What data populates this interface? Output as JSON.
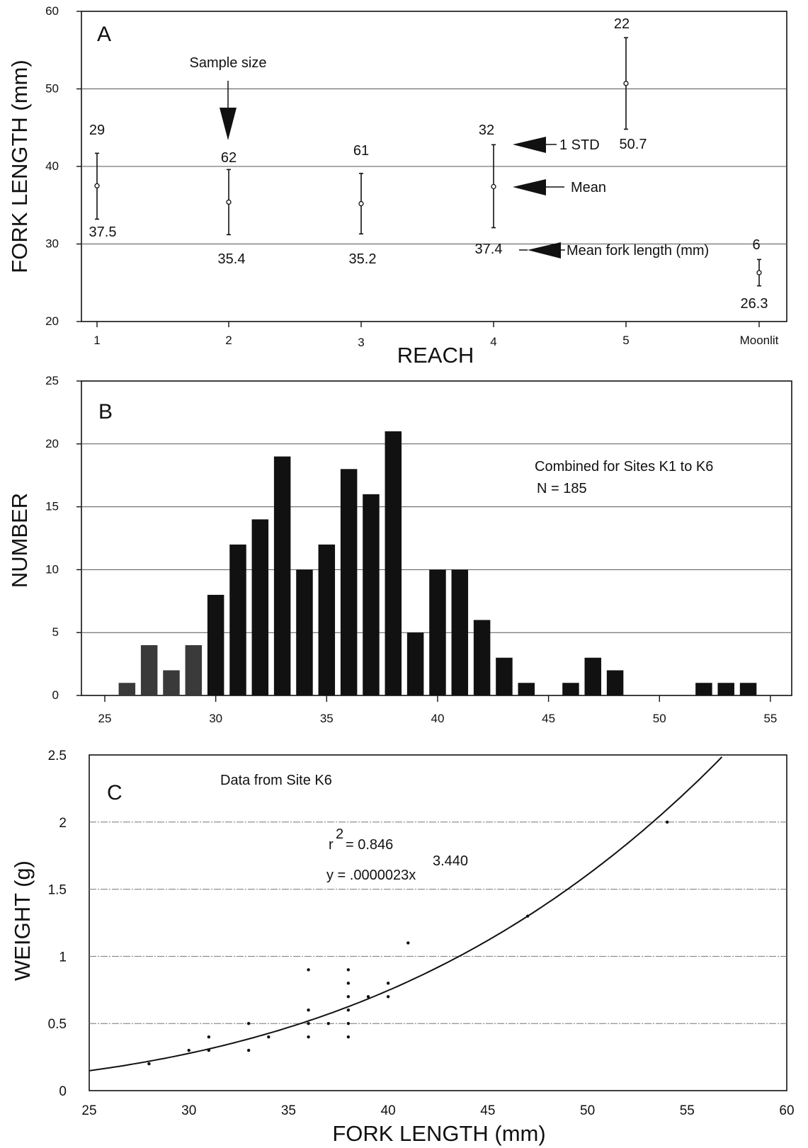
{
  "chart_data": [
    {
      "type": "errorbar",
      "panel": "A",
      "ylabel": "FORK LENGTH (mm)",
      "xlabel": "REACH",
      "ylim": [
        20,
        60
      ],
      "yticks": [
        20,
        30,
        40,
        50,
        60
      ],
      "grid": "horizontal",
      "categories": [
        "1",
        "2",
        "3",
        "4",
        "5",
        "Moonlit"
      ],
      "means": [
        37.5,
        35.4,
        35.2,
        37.4,
        50.7,
        26.3
      ],
      "std_low": [
        33.2,
        31.2,
        31.3,
        32.1,
        44.8,
        24.6
      ],
      "std_high": [
        41.7,
        39.6,
        39.1,
        42.8,
        56.6,
        28.0
      ],
      "sample_sizes": [
        "29",
        "62",
        "61",
        "32",
        "22",
        "6"
      ],
      "mean_labels": [
        "37.5",
        "35.4",
        "35.2",
        "37.4",
        "50.7",
        "26.3"
      ],
      "annotations": {
        "sample_size": "Sample size",
        "std": "1 STD",
        "mean": "Mean",
        "mean_fork_length": "Mean fork length (mm)"
      }
    },
    {
      "type": "bar",
      "panel": "B",
      "ylabel": "NUMBER",
      "ylim": [
        0,
        25
      ],
      "yticks": [
        0,
        5,
        10,
        15,
        20,
        25
      ],
      "xlim": [
        25,
        55
      ],
      "xticks": [
        25,
        30,
        35,
        40,
        45,
        50,
        55
      ],
      "grid": "horizontal",
      "x": [
        26,
        27,
        28,
        29,
        30,
        31,
        32,
        33,
        34,
        35,
        36,
        37,
        38,
        39,
        40,
        41,
        42,
        43,
        44,
        45,
        46,
        47,
        48,
        49,
        50,
        51,
        52,
        53,
        54
      ],
      "values": [
        1,
        4,
        2,
        4,
        8,
        12,
        14,
        19,
        10,
        12,
        18,
        16,
        21,
        5,
        10,
        10,
        6,
        3,
        1,
        0,
        1,
        3,
        2,
        0,
        0,
        0,
        1,
        1,
        1
      ],
      "annotation_line1": "Combined for Sites K1 to K6",
      "annotation_line2": "N = 185"
    },
    {
      "type": "scatter",
      "panel": "C",
      "ylabel": "WEIGHT (g)",
      "xlabel": "FORK LENGTH (mm)",
      "xlim": [
        25,
        60
      ],
      "ylim": [
        0,
        2.5
      ],
      "xticks": [
        "25",
        "30",
        "35",
        "40",
        "45",
        "50",
        "55",
        "60"
      ],
      "yticks": [
        "0",
        "0.5",
        "1",
        "1.5",
        "2",
        "2.5"
      ],
      "grid": "horizontal",
      "points": [
        [
          28,
          0.2
        ],
        [
          30,
          0.3
        ],
        [
          31,
          0.3
        ],
        [
          31,
          0.4
        ],
        [
          33,
          0.3
        ],
        [
          33,
          0.5
        ],
        [
          34,
          0.4
        ],
        [
          36,
          0.4
        ],
        [
          36,
          0.5
        ],
        [
          36,
          0.6
        ],
        [
          36,
          0.9
        ],
        [
          37,
          0.5
        ],
        [
          38,
          0.4
        ],
        [
          38,
          0.5
        ],
        [
          38,
          0.6
        ],
        [
          38,
          0.7
        ],
        [
          38,
          0.8
        ],
        [
          38,
          0.9
        ],
        [
          39,
          0.7
        ],
        [
          40,
          0.7
        ],
        [
          40,
          0.8
        ],
        [
          41,
          1.1
        ],
        [
          47,
          1.3
        ],
        [
          54,
          2.0
        ]
      ],
      "fit": {
        "a": 2.3e-06,
        "b": 3.44
      },
      "annotation_title": "Data from Site K6",
      "r2_prefix": "r",
      "r2_exp": "2",
      "r2_value": "= 0.846",
      "eq_text": "y = .0000023x",
      "eq_exp": "3.440"
    }
  ]
}
